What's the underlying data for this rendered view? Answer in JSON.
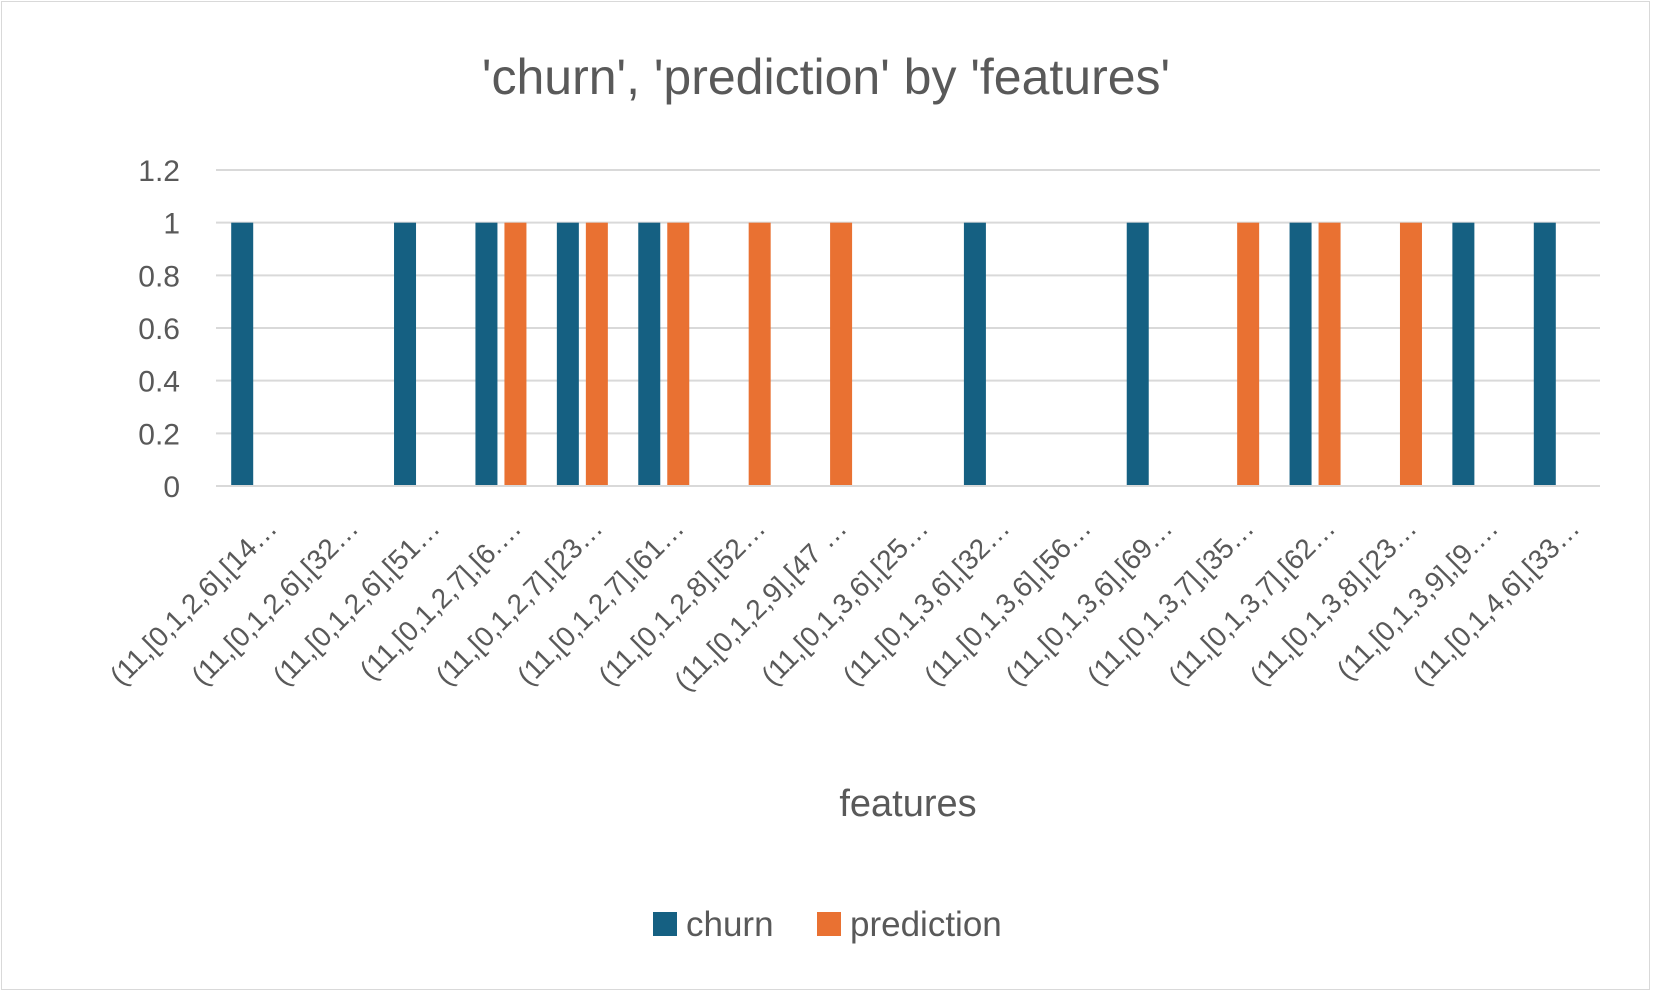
{
  "chart_data": {
    "type": "bar",
    "title": "'churn', 'prediction' by 'features'",
    "xlabel": "features",
    "ylabel": "",
    "ylim": [
      0,
      1.2
    ],
    "yticks": [
      "0",
      "0.2",
      "0.4",
      "0.6",
      "0.8",
      "1",
      "1.2"
    ],
    "grid": true,
    "legend_position": "bottom",
    "categories": [
      "(11,[0,1,2,6],[14…",
      "(11,[0,1,2,6],[32…",
      "(11,[0,1,2,6],[51…",
      "(11,[0,1,2,7],[6.…",
      "(11,[0,1,2,7],[23…",
      "(11,[0,1,2,7],[61…",
      "(11,[0,1,2,8],[52…",
      "(11,[0,1,2,9],[47 …",
      "(11,[0,1,3,6],[25…",
      "(11,[0,1,3,6],[32…",
      "(11,[0,1,3,6],[56…",
      "(11,[0,1,3,6],[69…",
      "(11,[0,1,3,7],[35…",
      "(11,[0,1,3,7],[62…",
      "(11,[0,1,3,8],[23…",
      "(11,[0,1,3,9],[9.…",
      "(11,[0,1,4,6],[33…"
    ],
    "series": [
      {
        "name": "churn",
        "color": "#156082",
        "values": [
          1,
          0,
          1,
          1,
          1,
          1,
          0,
          0,
          0,
          1,
          0,
          1,
          0,
          1,
          0,
          1,
          1
        ]
      },
      {
        "name": "prediction",
        "color": "#E97132",
        "values": [
          0,
          0,
          0,
          1,
          1,
          1,
          1,
          1,
          0,
          0,
          0,
          0,
          1,
          1,
          1,
          0,
          0
        ]
      }
    ]
  }
}
